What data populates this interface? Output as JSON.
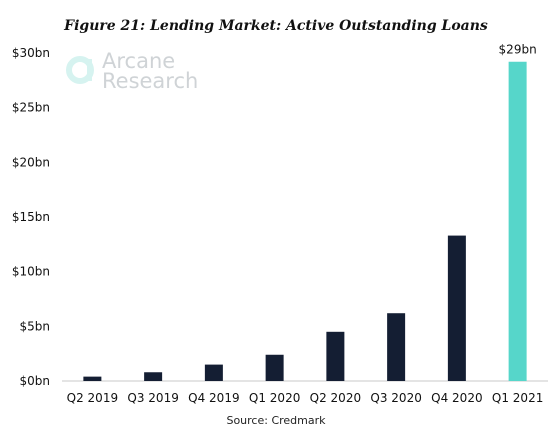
{
  "chart_data": {
    "type": "bar",
    "title": "Figure 21: Lending Market: Active Outstanding Loans",
    "xlabel": "",
    "ylabel": "",
    "categories": [
      "Q2 2019",
      "Q3 2019",
      "Q4 2019",
      "Q1 2020",
      "Q2 2020",
      "Q3 2020",
      "Q4 2020",
      "Q1 2021"
    ],
    "values": [
      0.4,
      0.8,
      1.5,
      2.4,
      4.5,
      6.2,
      13.3,
      29.2
    ],
    "ylim": [
      0,
      30
    ],
    "yticks": [
      0,
      5,
      10,
      15,
      20,
      25,
      30
    ],
    "ytick_labels": [
      "$0bn",
      "$5bn",
      "$10bn",
      "$15bn",
      "$20bn",
      "$25bn",
      "$30bn"
    ],
    "data_labels": [
      {
        "category": "Q1 2021",
        "text": "$29bn"
      }
    ],
    "grid": false,
    "colors": {
      "bar": "#141e33",
      "highlight_bar": "#56d6ca",
      "axis": "#c8c8c8"
    },
    "highlight_category": "Q1 2021"
  },
  "source_text": "Source: Credmark",
  "watermark": {
    "line1": "Arcane",
    "line2": "Research"
  }
}
